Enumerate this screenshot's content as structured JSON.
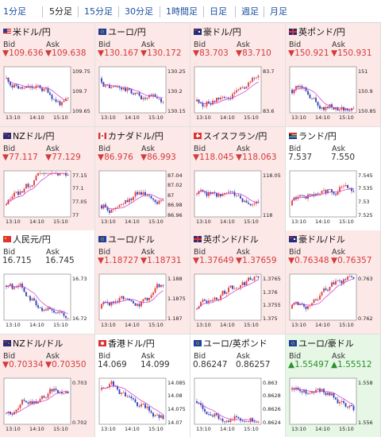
{
  "tabs": [
    "1分足",
    "5分足",
    "15分足",
    "30分足",
    "1時間足",
    "日足",
    "週足",
    "月足"
  ],
  "active_tab": 1,
  "labels": {
    "bid": "Bid",
    "ask": "Ask"
  },
  "x_ticks": [
    "13:10",
    "14:10",
    "15:10"
  ],
  "colors": {
    "down_bg": "#fde8e8",
    "up_bg": "#e6f7e6",
    "candle_up": "#e03a3a",
    "candle_down": "#2a3fb8",
    "ma_line": "#cc33cc"
  },
  "pairs": [
    {
      "name": "米ドル/円",
      "flag": "us",
      "state": "down",
      "bid": "▼109.636",
      "ask": "▼109.638",
      "ymin": 109.63,
      "ymax": 109.77,
      "yticks": [
        "109.75",
        "109.7",
        "109.65"
      ],
      "trend": "down"
    },
    {
      "name": "ユーロ/円",
      "flag": "eu",
      "state": "down",
      "bid": "▼130.167",
      "ask": "▼130.172",
      "ymin": 130.13,
      "ymax": 130.3,
      "yticks": [
        "130.25",
        "130.2",
        "130.15"
      ],
      "trend": "down"
    },
    {
      "name": "豪ドル/円",
      "flag": "au",
      "state": "down",
      "bid": "▼83.703",
      "ask": "▼83.710",
      "ymin": 83.55,
      "ymax": 83.75,
      "yticks": [
        "83.7",
        "83.6"
      ],
      "trend": "up"
    },
    {
      "name": "英ポンド/円",
      "flag": "uk",
      "state": "down",
      "bid": "▼150.921",
      "ask": "▼150.931",
      "ymin": 150.83,
      "ymax": 151.05,
      "yticks": [
        "151",
        "150.9",
        "150.85"
      ],
      "trend": "flat"
    },
    {
      "name": "NZドル/円",
      "flag": "nz",
      "state": "down",
      "bid": "▼77.117",
      "ask": "▼77.129",
      "ymin": 76.97,
      "ymax": 77.16,
      "yticks": [
        "77.15",
        "77.1",
        "77.05",
        "77"
      ],
      "trend": "up"
    },
    {
      "name": "カナダドル/円",
      "flag": "ca",
      "state": "down",
      "bid": "▼86.976",
      "ask": "▼86.993",
      "ymin": 86.95,
      "ymax": 87.05,
      "yticks": [
        "87.04",
        "87.02",
        "87",
        "86.98",
        "86.96"
      ],
      "trend": "up"
    },
    {
      "name": "スイスフラン/円",
      "flag": "ch",
      "state": "down",
      "bid": "▼118.045",
      "ask": "▼118.063",
      "ymin": 117.98,
      "ymax": 118.12,
      "yticks": [
        "118.05",
        "118"
      ],
      "trend": "flat"
    },
    {
      "name": "ランド/円",
      "flag": "za",
      "state": "flat",
      "bid": "7.537",
      "ask": "7.550",
      "ymin": 7.52,
      "ymax": 7.56,
      "yticks": [
        "7.545",
        "7.535",
        "7.53",
        "7.525"
      ],
      "trend": "up"
    },
    {
      "name": "人民元/円",
      "flag": "cn",
      "state": "flat",
      "bid": "16.715",
      "ask": "16.745",
      "ymin": 16.71,
      "ymax": 16.76,
      "yticks": [
        "16.73",
        "16.72"
      ],
      "trend": "down"
    },
    {
      "name": "ユーロ/ドル",
      "flag": "eu",
      "state": "down",
      "bid": "▼1.18727",
      "ask": "▼1.18731",
      "ymin": 1.1865,
      "ymax": 1.1885,
      "yticks": [
        "1.188",
        "1.1875",
        "1.187"
      ],
      "trend": "up"
    },
    {
      "name": "英ポンド/ドル",
      "flag": "uk",
      "state": "down",
      "bid": "▼1.37649",
      "ask": "▼1.37659",
      "ymin": 1.3745,
      "ymax": 1.377,
      "yticks": [
        "1.3765",
        "1.376",
        "1.3755",
        "1.375"
      ],
      "trend": "up"
    },
    {
      "name": "豪ドル/ドル",
      "flag": "au",
      "state": "down",
      "bid": "▼0.76348",
      "ask": "▼0.76357",
      "ymin": 0.7615,
      "ymax": 0.7645,
      "yticks": [
        "0.763",
        "0.762"
      ],
      "trend": "up"
    },
    {
      "name": "NZドル/ドル",
      "flag": "nz",
      "state": "down",
      "bid": "▼0.70334",
      "ask": "▼0.70350",
      "ymin": 0.7014,
      "ymax": 0.7036,
      "yticks": [
        "0.703",
        "0.702"
      ],
      "trend": "up"
    },
    {
      "name": "香港ドル/円",
      "flag": "hk",
      "state": "flat",
      "bid": "14.069",
      "ask": "14.099",
      "ymin": 14.068,
      "ymax": 14.087,
      "yticks": [
        "14.085",
        "14.08",
        "14.075",
        "14.07"
      ],
      "trend": "down"
    },
    {
      "name": "ユーロ/英ポンド",
      "flag": "eu",
      "state": "flat",
      "bid": "0.86247",
      "ask": "0.86257",
      "ymin": 0.8622,
      "ymax": 0.8632,
      "yticks": [
        "0.863",
        "0.8628",
        "0.8626",
        "0.8624"
      ],
      "trend": "flat"
    },
    {
      "name": "ユーロ/豪ドル",
      "flag": "eu",
      "state": "up",
      "bid": "▲1.55497",
      "ask": "▲1.55512",
      "ymin": 1.5545,
      "ymax": 1.559,
      "yticks": [
        "1.558",
        "1.556"
      ],
      "trend": "down"
    }
  ]
}
